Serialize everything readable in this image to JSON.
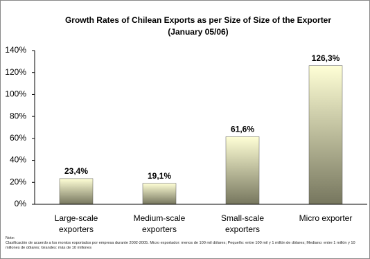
{
  "chart_data": {
    "type": "bar",
    "title": "Growth Rates of Chilean Exports as per Size of Size of the Exporter",
    "subtitle": "(January 05/06)",
    "categories": [
      "Large-scale exporters",
      "Medium-scale exporters",
      "Small-scale exporters",
      "Micro exporter"
    ],
    "values": [
      23.4,
      19.1,
      61.6,
      126.3
    ],
    "value_labels": [
      "23,4%",
      "19,1%",
      "61,6%",
      "126,3%"
    ],
    "gradient": [
      "#ffffd6",
      "#76765e"
    ],
    "ylim": [
      0,
      140
    ],
    "yticks": [
      {
        "value": 0,
        "label": "0%"
      },
      {
        "value": 20,
        "label": "20%"
      },
      {
        "value": 40,
        "label": "40%"
      },
      {
        "value": 60,
        "label": "60%"
      },
      {
        "value": 80,
        "label": "80%"
      },
      {
        "value": 100,
        "label": "100%"
      },
      {
        "value": 120,
        "label": "120%"
      },
      {
        "value": 140,
        "label": "140%"
      }
    ],
    "grid": false,
    "note_label": "Note:",
    "note": "Clasificación de acuerdo a los montos exportados por empresa durante 2002-2005. Micro exportador: menos de 100 mil dólares; Pequeño: entre 100 mil y 1 millón de dólares; Mediano: entre 1 millón y 10 millones de dólares; Grandes: más de 10 millones"
  }
}
